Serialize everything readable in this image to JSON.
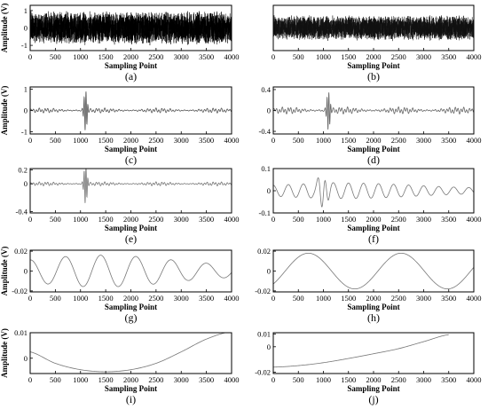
{
  "chart_data": [
    {
      "panel": "(a)",
      "type": "line",
      "signal": "dense-noise",
      "color": "#000000",
      "xlabel": "Sampling Point",
      "ylabel": "Amplitude (V)",
      "xlim": [
        0,
        4000
      ],
      "ylim": [
        -1.3,
        1.3
      ],
      "xticks": [
        0,
        500,
        1000,
        1500,
        2000,
        2500,
        3000,
        3500,
        4000
      ],
      "yticks": [
        -1,
        0,
        1
      ],
      "ytick_labels": [
        "-1",
        "0",
        "1"
      ],
      "amplitude": 1.0
    },
    {
      "panel": "(b)",
      "type": "line",
      "signal": "dense-noise",
      "color": "#111111",
      "xlabel": "Sampling Point",
      "ylabel": "",
      "xlim": [
        0,
        4000
      ],
      "ylim": [
        -1.3,
        1.3
      ],
      "xticks": [
        0,
        500,
        1000,
        1500,
        2000,
        2500,
        3000,
        3500,
        4000
      ],
      "yticks": [],
      "ytick_labels": [],
      "amplitude": 0.75
    },
    {
      "panel": "(c)",
      "type": "line",
      "signal": "burst",
      "color": "#555555",
      "xlabel": "Sampling Point",
      "ylabel": "Amplitude (V)",
      "xlim": [
        0,
        4000
      ],
      "ylim": [
        -1.1,
        1.1
      ],
      "xticks": [
        0,
        500,
        1000,
        1500,
        2000,
        2500,
        3000,
        3500,
        4000
      ],
      "yticks": [
        -1,
        0,
        1
      ],
      "ytick_labels": [
        "-1",
        "0",
        "1"
      ],
      "background_amplitude": 0.12,
      "burst_center": 1100,
      "burst_peak": 1.0
    },
    {
      "panel": "(d)",
      "type": "line",
      "signal": "burst",
      "color": "#666666",
      "xlabel": "Sampling Point",
      "ylabel": "",
      "xlim": [
        0,
        4000
      ],
      "ylim": [
        -0.45,
        0.45
      ],
      "xticks": [
        0,
        500,
        1000,
        1500,
        2000,
        2500,
        3000,
        3500,
        4000
      ],
      "yticks": [
        -0.4,
        0,
        0.4
      ],
      "ytick_labels": [
        "-0.4",
        "0",
        "0.4"
      ],
      "background_amplitude": 0.07,
      "burst_center": 1100,
      "burst_peak": 0.4
    },
    {
      "panel": "(e)",
      "type": "line",
      "signal": "burst",
      "color": "#777777",
      "xlabel": "Sampling Point",
      "ylabel": "",
      "xlim": [
        0,
        4000
      ],
      "ylim": [
        -0.42,
        0.22
      ],
      "xticks": [
        0,
        500,
        1000,
        1500,
        2000,
        2500,
        3000,
        3500,
        4000
      ],
      "yticks": [
        -0.4,
        0,
        0.2
      ],
      "ytick_labels": [
        "-0.4",
        "0",
        "0.2"
      ],
      "background_amplitude": 0.03,
      "burst_center": 1100,
      "burst_peak": 0.3
    },
    {
      "panel": "(f)",
      "type": "line",
      "signal": "wave",
      "color": "#777777",
      "xlabel": "Sampling Point",
      "ylabel": "",
      "xlim": [
        0,
        4000
      ],
      "ylim": [
        -0.1,
        0.1
      ],
      "xticks": [
        0,
        500,
        1000,
        1500,
        2000,
        2500,
        3000,
        3500,
        4000
      ],
      "yticks": [
        -0.1,
        0,
        0.1
      ],
      "ytick_labels": [
        "-0.1",
        "0",
        "0.1"
      ],
      "period": 300,
      "amplitude": 0.035,
      "burst_center": 1000,
      "burst_peak": 0.09
    },
    {
      "panel": "(g)",
      "type": "line",
      "signal": "wave",
      "color": "#777777",
      "xlabel": "Sampling Point",
      "ylabel": "Amplitude (V)",
      "xlim": [
        0,
        4000
      ],
      "ylim": [
        -0.021,
        0.021
      ],
      "xticks": [
        0,
        500,
        1000,
        1500,
        2000,
        2500,
        3000,
        3500,
        4000
      ],
      "yticks": [
        -0.02,
        0,
        0.02
      ],
      "ytick_labels": [
        "-0.02",
        "0",
        "0.02"
      ],
      "period": 700,
      "amplitude": 0.016,
      "burst_center": 0,
      "burst_peak": 0
    },
    {
      "panel": "(h)",
      "type": "line",
      "signal": "wave",
      "color": "#777777",
      "xlabel": "Sampling Point",
      "ylabel": "",
      "xlim": [
        0,
        4000
      ],
      "ylim": [
        -0.021,
        0.021
      ],
      "xticks": [
        0,
        500,
        1000,
        1500,
        2000,
        2500,
        3000,
        3500,
        4000
      ],
      "yticks": [
        -0.02,
        0,
        0.02
      ],
      "ytick_labels": [
        "-0.02",
        "0",
        "0.02"
      ],
      "period": 1850,
      "amplitude": 0.018,
      "phase_x": 700,
      "burst_center": 0,
      "burst_peak": 0
    },
    {
      "panel": "(i)",
      "type": "line",
      "signal": "curve",
      "color": "#777777",
      "xlabel": "Sampling Point",
      "ylabel": "Amplitude (V)",
      "xlim": [
        0,
        4000
      ],
      "ylim": [
        -0.006,
        0.01
      ],
      "xticks": [
        0,
        500,
        1000,
        1500,
        2000,
        2500,
        3000,
        3500,
        4000
      ],
      "yticks": [
        0,
        0.01
      ],
      "ytick_labels": [
        "0",
        "0.01"
      ],
      "x": [
        0,
        500,
        1000,
        1500,
        2000,
        2500,
        3000,
        3500,
        4000
      ],
      "y": [
        0.0025,
        -0.002,
        -0.0045,
        -0.0053,
        -0.0045,
        -0.002,
        0.0025,
        0.0075,
        0.0105
      ]
    },
    {
      "panel": "(j)",
      "type": "line",
      "signal": "curve",
      "color": "#777777",
      "xlabel": "Sampling Point",
      "ylabel": "",
      "xlim": [
        0,
        4000
      ],
      "ylim": [
        -0.021,
        0.011
      ],
      "xticks": [
        0,
        500,
        1000,
        1500,
        2000,
        2500,
        3000,
        3500,
        4000
      ],
      "yticks": [
        -0.02,
        0,
        0.01
      ],
      "ytick_labels": [
        "-0.02",
        "0",
        "0.01"
      ],
      "x": [
        0,
        500,
        1000,
        1500,
        2000,
        2500,
        3000,
        3500
      ],
      "y": [
        -0.016,
        -0.0148,
        -0.0125,
        -0.0092,
        -0.0055,
        -0.0015,
        0.004,
        0.0095
      ]
    }
  ]
}
